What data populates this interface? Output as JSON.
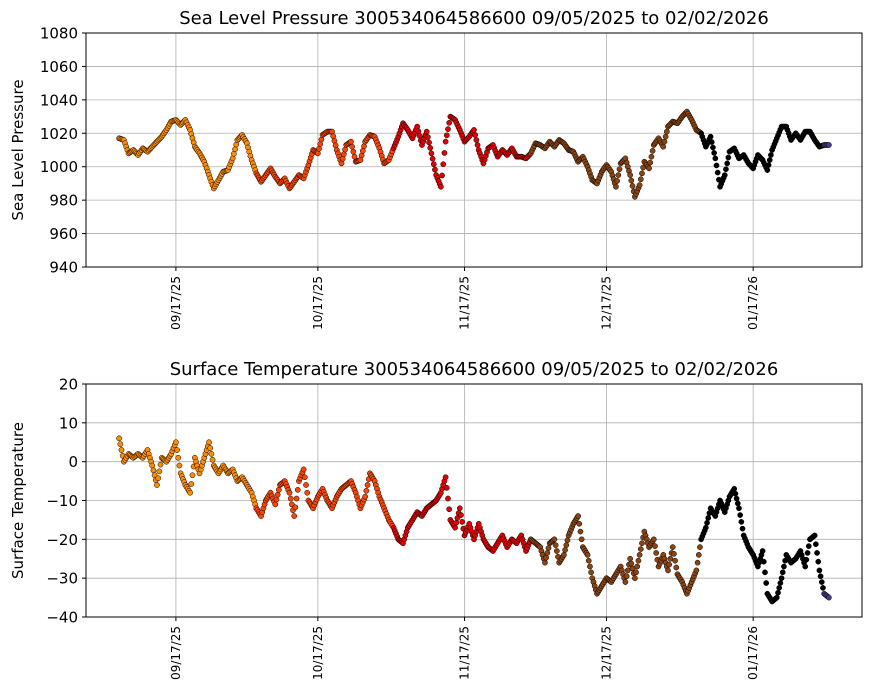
{
  "chart_data": [
    {
      "type": "scatter",
      "title": "Sea Level Pressure 300534064586600  09/05/2025 to 02/02/2026",
      "xlabel": "",
      "ylabel": "Sea Level Pressure",
      "xlim": [
        "2025-08-29",
        "2026-02-09"
      ],
      "ylim": [
        940,
        1080
      ],
      "yticks": [
        940,
        960,
        980,
        1000,
        1020,
        1040,
        1060,
        1080
      ],
      "xticks": [
        "09/17/25",
        "10/17/25",
        "11/17/25",
        "12/17/25",
        "01/17/26"
      ],
      "xtick_dates": [
        "2025-09-17",
        "2025-10-17",
        "2025-11-17",
        "2025-12-17",
        "2026-01-17"
      ],
      "grid": true,
      "series": [
        {
          "color": "#ff8c00",
          "x": [
            "2025-09-05",
            "2025-09-06",
            "2025-09-07",
            "2025-09-08",
            "2025-09-09",
            "2025-09-10",
            "2025-09-11",
            "2025-09-12",
            "2025-09-13",
            "2025-09-14",
            "2025-09-15",
            "2025-09-16",
            "2025-09-17",
            "2025-09-18",
            "2025-09-19",
            "2025-09-20",
            "2025-09-21",
            "2025-09-22",
            "2025-09-23",
            "2025-09-24",
            "2025-09-25",
            "2025-09-26",
            "2025-09-27",
            "2025-09-28",
            "2025-09-29",
            "2025-09-30",
            "2025-10-01",
            "2025-10-02",
            "2025-10-03"
          ],
          "y": [
            1017,
            1016,
            1008,
            1010,
            1007,
            1011,
            1009,
            1012,
            1015,
            1018,
            1022,
            1027,
            1028,
            1025,
            1028,
            1022,
            1012,
            1008,
            1003,
            995,
            987,
            992,
            997,
            998,
            1005,
            1016,
            1019,
            1014,
            1004
          ]
        },
        {
          "color": "#ff4500",
          "x": [
            "2025-10-04",
            "2025-10-05",
            "2025-10-06",
            "2025-10-07",
            "2025-10-08",
            "2025-10-09",
            "2025-10-10",
            "2025-10-11",
            "2025-10-12",
            "2025-10-13",
            "2025-10-14",
            "2025-10-15",
            "2025-10-16",
            "2025-10-17",
            "2025-10-18",
            "2025-10-19",
            "2025-10-20",
            "2025-10-21",
            "2025-10-22",
            "2025-10-23",
            "2025-10-24",
            "2025-10-25",
            "2025-10-26",
            "2025-10-27",
            "2025-10-28",
            "2025-10-29",
            "2025-10-30",
            "2025-10-31",
            "2025-11-01"
          ],
          "y": [
            996,
            991,
            995,
            999,
            994,
            990,
            993,
            987,
            991,
            995,
            993,
            1001,
            1010,
            1008,
            1019,
            1021,
            1021,
            1010,
            1002,
            1013,
            1015,
            1003,
            1004,
            1015,
            1019,
            1018,
            1011,
            1002,
            1004
          ]
        },
        {
          "color": "#e00000",
          "x": [
            "2025-11-02",
            "2025-11-03",
            "2025-11-04",
            "2025-11-05",
            "2025-11-06",
            "2025-11-07",
            "2025-11-08",
            "2025-11-09",
            "2025-11-10",
            "2025-11-11",
            "2025-11-12",
            "2025-11-13",
            "2025-11-14",
            "2025-11-15",
            "2025-11-16",
            "2025-11-17",
            "2025-11-18",
            "2025-11-19",
            "2025-11-20",
            "2025-11-21",
            "2025-11-22",
            "2025-11-23",
            "2025-11-24",
            "2025-11-25",
            "2025-11-26",
            "2025-11-27",
            "2025-11-28",
            "2025-11-29",
            "2025-11-30"
          ],
          "y": [
            1011,
            1018,
            1026,
            1022,
            1017,
            1024,
            1013,
            1021,
            1008,
            995,
            988,
            1015,
            1030,
            1028,
            1022,
            1015,
            1018,
            1022,
            1010,
            1002,
            1011,
            1013,
            1006,
            1010,
            1007,
            1011,
            1006,
            1006,
            1005
          ]
        },
        {
          "color": "#8b4513",
          "x": [
            "2025-12-01",
            "2025-12-02",
            "2025-12-03",
            "2025-12-04",
            "2025-12-05",
            "2025-12-06",
            "2025-12-07",
            "2025-12-08",
            "2025-12-09",
            "2025-12-10",
            "2025-12-11",
            "2025-12-12",
            "2025-12-13",
            "2025-12-14",
            "2025-12-15",
            "2025-12-16",
            "2025-12-17",
            "2025-12-18",
            "2025-12-19",
            "2025-12-20",
            "2025-12-21",
            "2025-12-22",
            "2025-12-23",
            "2025-12-24",
            "2025-12-25",
            "2025-12-26",
            "2025-12-27",
            "2025-12-28",
            "2025-12-29",
            "2025-12-30",
            "2025-12-31",
            "2026-01-01",
            "2026-01-02",
            "2026-01-03",
            "2026-01-04",
            "2026-01-05"
          ],
          "y": [
            1008,
            1014,
            1013,
            1011,
            1015,
            1012,
            1016,
            1014,
            1010,
            1009,
            1003,
            1006,
            1000,
            992,
            990,
            997,
            1001,
            997,
            988,
            1002,
            1005,
            995,
            982,
            989,
            1003,
            999,
            1013,
            1017,
            1012,
            1024,
            1027,
            1026,
            1030,
            1033,
            1028,
            1022
          ]
        },
        {
          "color": "#000000",
          "x": [
            "2026-01-06",
            "2026-01-07",
            "2026-01-08",
            "2026-01-09",
            "2026-01-10",
            "2026-01-11",
            "2026-01-12",
            "2026-01-13",
            "2026-01-14",
            "2026-01-15",
            "2026-01-16",
            "2026-01-17",
            "2026-01-18",
            "2026-01-19",
            "2026-01-20",
            "2026-01-21",
            "2026-01-22",
            "2026-01-23",
            "2026-01-24",
            "2026-01-25",
            "2026-01-26",
            "2026-01-27",
            "2026-01-28",
            "2026-01-29",
            "2026-01-30",
            "2026-01-31"
          ],
          "y": [
            1020,
            1012,
            1018,
            1005,
            988,
            995,
            1009,
            1011,
            1005,
            1007,
            1002,
            999,
            1007,
            1004,
            998,
            1010,
            1017,
            1024,
            1024,
            1016,
            1020,
            1016,
            1021,
            1021,
            1016,
            1012
          ]
        },
        {
          "color": "#483d8b",
          "x": [
            "2026-02-01",
            "2026-02-02"
          ],
          "y": [
            1013,
            1013
          ]
        }
      ]
    },
    {
      "type": "scatter",
      "title": "Surface Temperature 300534064586600  09/05/2025 to 02/02/2026",
      "xlabel": "",
      "ylabel": "Surface Temperature",
      "xlim": [
        "2025-08-29",
        "2026-02-09"
      ],
      "ylim": [
        -40,
        20
      ],
      "yticks": [
        -40,
        -30,
        -20,
        -10,
        0,
        10,
        20
      ],
      "xticks": [
        "09/17/25",
        "10/17/25",
        "11/17/25",
        "12/17/25",
        "01/17/26"
      ],
      "xtick_dates": [
        "2025-09-17",
        "2025-10-17",
        "2025-11-17",
        "2025-12-17",
        "2026-01-17"
      ],
      "grid": true,
      "series": [
        {
          "color": "#ff8c00",
          "x": [
            "2025-09-05",
            "2025-09-06",
            "2025-09-07",
            "2025-09-08",
            "2025-09-09",
            "2025-09-10",
            "2025-09-11",
            "2025-09-12",
            "2025-09-13",
            "2025-09-14",
            "2025-09-15",
            "2025-09-16",
            "2025-09-17",
            "2025-09-18",
            "2025-09-19",
            "2025-09-20",
            "2025-09-21",
            "2025-09-22",
            "2025-09-23",
            "2025-09-24",
            "2025-09-25",
            "2025-09-26",
            "2025-09-27",
            "2025-09-28",
            "2025-09-29",
            "2025-09-30",
            "2025-10-01",
            "2025-10-02",
            "2025-10-03"
          ],
          "y": [
            6,
            0,
            2,
            1,
            2,
            1,
            3,
            -1,
            -6,
            1,
            0,
            2,
            5,
            -3,
            -6,
            -8,
            1,
            -3,
            1,
            5,
            -1,
            -3,
            -1,
            -3,
            -2,
            -5,
            -4,
            -6,
            -8
          ]
        },
        {
          "color": "#ff4500",
          "x": [
            "2025-10-04",
            "2025-10-05",
            "2025-10-06",
            "2025-10-07",
            "2025-10-08",
            "2025-10-09",
            "2025-10-10",
            "2025-10-11",
            "2025-10-12",
            "2025-10-13",
            "2025-10-14",
            "2025-10-15",
            "2025-10-16",
            "2025-10-17",
            "2025-10-18",
            "2025-10-19",
            "2025-10-20",
            "2025-10-21",
            "2025-10-22",
            "2025-10-23",
            "2025-10-24",
            "2025-10-25",
            "2025-10-26",
            "2025-10-27",
            "2025-10-28",
            "2025-10-29",
            "2025-10-30",
            "2025-10-31",
            "2025-11-01"
          ],
          "y": [
            -12,
            -14,
            -10,
            -8,
            -11,
            -6,
            -5,
            -8,
            -14,
            -5,
            -2,
            -10,
            -12,
            -9,
            -7,
            -10,
            -12,
            -9,
            -7,
            -6,
            -5,
            -8,
            -12,
            -9,
            -3,
            -5,
            -9,
            -12,
            -15
          ]
        },
        {
          "color": "#e00000",
          "x": [
            "2025-11-02",
            "2025-11-03",
            "2025-11-04",
            "2025-11-05",
            "2025-11-06",
            "2025-11-07",
            "2025-11-08",
            "2025-11-09",
            "2025-11-10",
            "2025-11-11",
            "2025-11-12",
            "2025-11-13",
            "2025-11-14",
            "2025-11-15",
            "2025-11-16",
            "2025-11-17",
            "2025-11-18",
            "2025-11-19",
            "2025-11-20",
            "2025-11-21",
            "2025-11-22",
            "2025-11-23",
            "2025-11-24",
            "2025-11-25",
            "2025-11-26",
            "2025-11-27",
            "2025-11-28",
            "2025-11-29",
            "2025-11-30"
          ],
          "y": [
            -17,
            -20,
            -21,
            -17,
            -15,
            -13,
            -14,
            -12,
            -11,
            -10,
            -8,
            -4,
            -15,
            -17,
            -12,
            -19,
            -16,
            -20,
            -16,
            -20,
            -22,
            -23,
            -21,
            -19,
            -22,
            -20,
            -21,
            -19,
            -23
          ]
        },
        {
          "color": "#8b4513",
          "x": [
            "2025-12-01",
            "2025-12-02",
            "2025-12-03",
            "2025-12-04",
            "2025-12-05",
            "2025-12-06",
            "2025-12-07",
            "2025-12-08",
            "2025-12-09",
            "2025-12-10",
            "2025-12-11",
            "2025-12-12",
            "2025-12-13",
            "2025-12-14",
            "2025-12-15",
            "2025-12-16",
            "2025-12-17",
            "2025-12-18",
            "2025-12-19",
            "2025-12-20",
            "2025-12-21",
            "2025-12-22",
            "2025-12-23",
            "2025-12-24",
            "2025-12-25",
            "2025-12-26",
            "2025-12-27",
            "2025-12-28",
            "2025-12-29",
            "2025-12-30",
            "2025-12-31",
            "2026-01-01",
            "2026-01-02",
            "2026-01-03",
            "2026-01-04",
            "2026-01-05"
          ],
          "y": [
            -20,
            -21,
            -22,
            -26,
            -21,
            -20,
            -26,
            -24,
            -19,
            -16,
            -14,
            -22,
            -24,
            -30,
            -34,
            -32,
            -30,
            -31,
            -29,
            -27,
            -31,
            -25,
            -30,
            -24,
            -18,
            -22,
            -20,
            -27,
            -24,
            -28,
            -22,
            -29,
            -31,
            -34,
            -31,
            -28
          ]
        },
        {
          "color": "#000000",
          "x": [
            "2026-01-06",
            "2026-01-07",
            "2026-01-08",
            "2026-01-09",
            "2026-01-10",
            "2026-01-11",
            "2026-01-12",
            "2026-01-13",
            "2026-01-14",
            "2026-01-15",
            "2026-01-16",
            "2026-01-17",
            "2026-01-18",
            "2026-01-19",
            "2026-01-20",
            "2026-01-21",
            "2026-01-22",
            "2026-01-23",
            "2026-01-24",
            "2026-01-25",
            "2026-01-26",
            "2026-01-27",
            "2026-01-28",
            "2026-01-29",
            "2026-01-30",
            "2026-01-31"
          ],
          "y": [
            -20,
            -17,
            -12,
            -14,
            -10,
            -13,
            -9,
            -7,
            -12,
            -19,
            -22,
            -24,
            -27,
            -23,
            -34,
            -36,
            -35,
            -30,
            -24,
            -26,
            -25,
            -23,
            -27,
            -20,
            -19,
            -28
          ]
        },
        {
          "color": "#483d8b",
          "x": [
            "2026-02-01",
            "2026-02-02"
          ],
          "y": [
            -34,
            -35
          ]
        }
      ]
    }
  ]
}
